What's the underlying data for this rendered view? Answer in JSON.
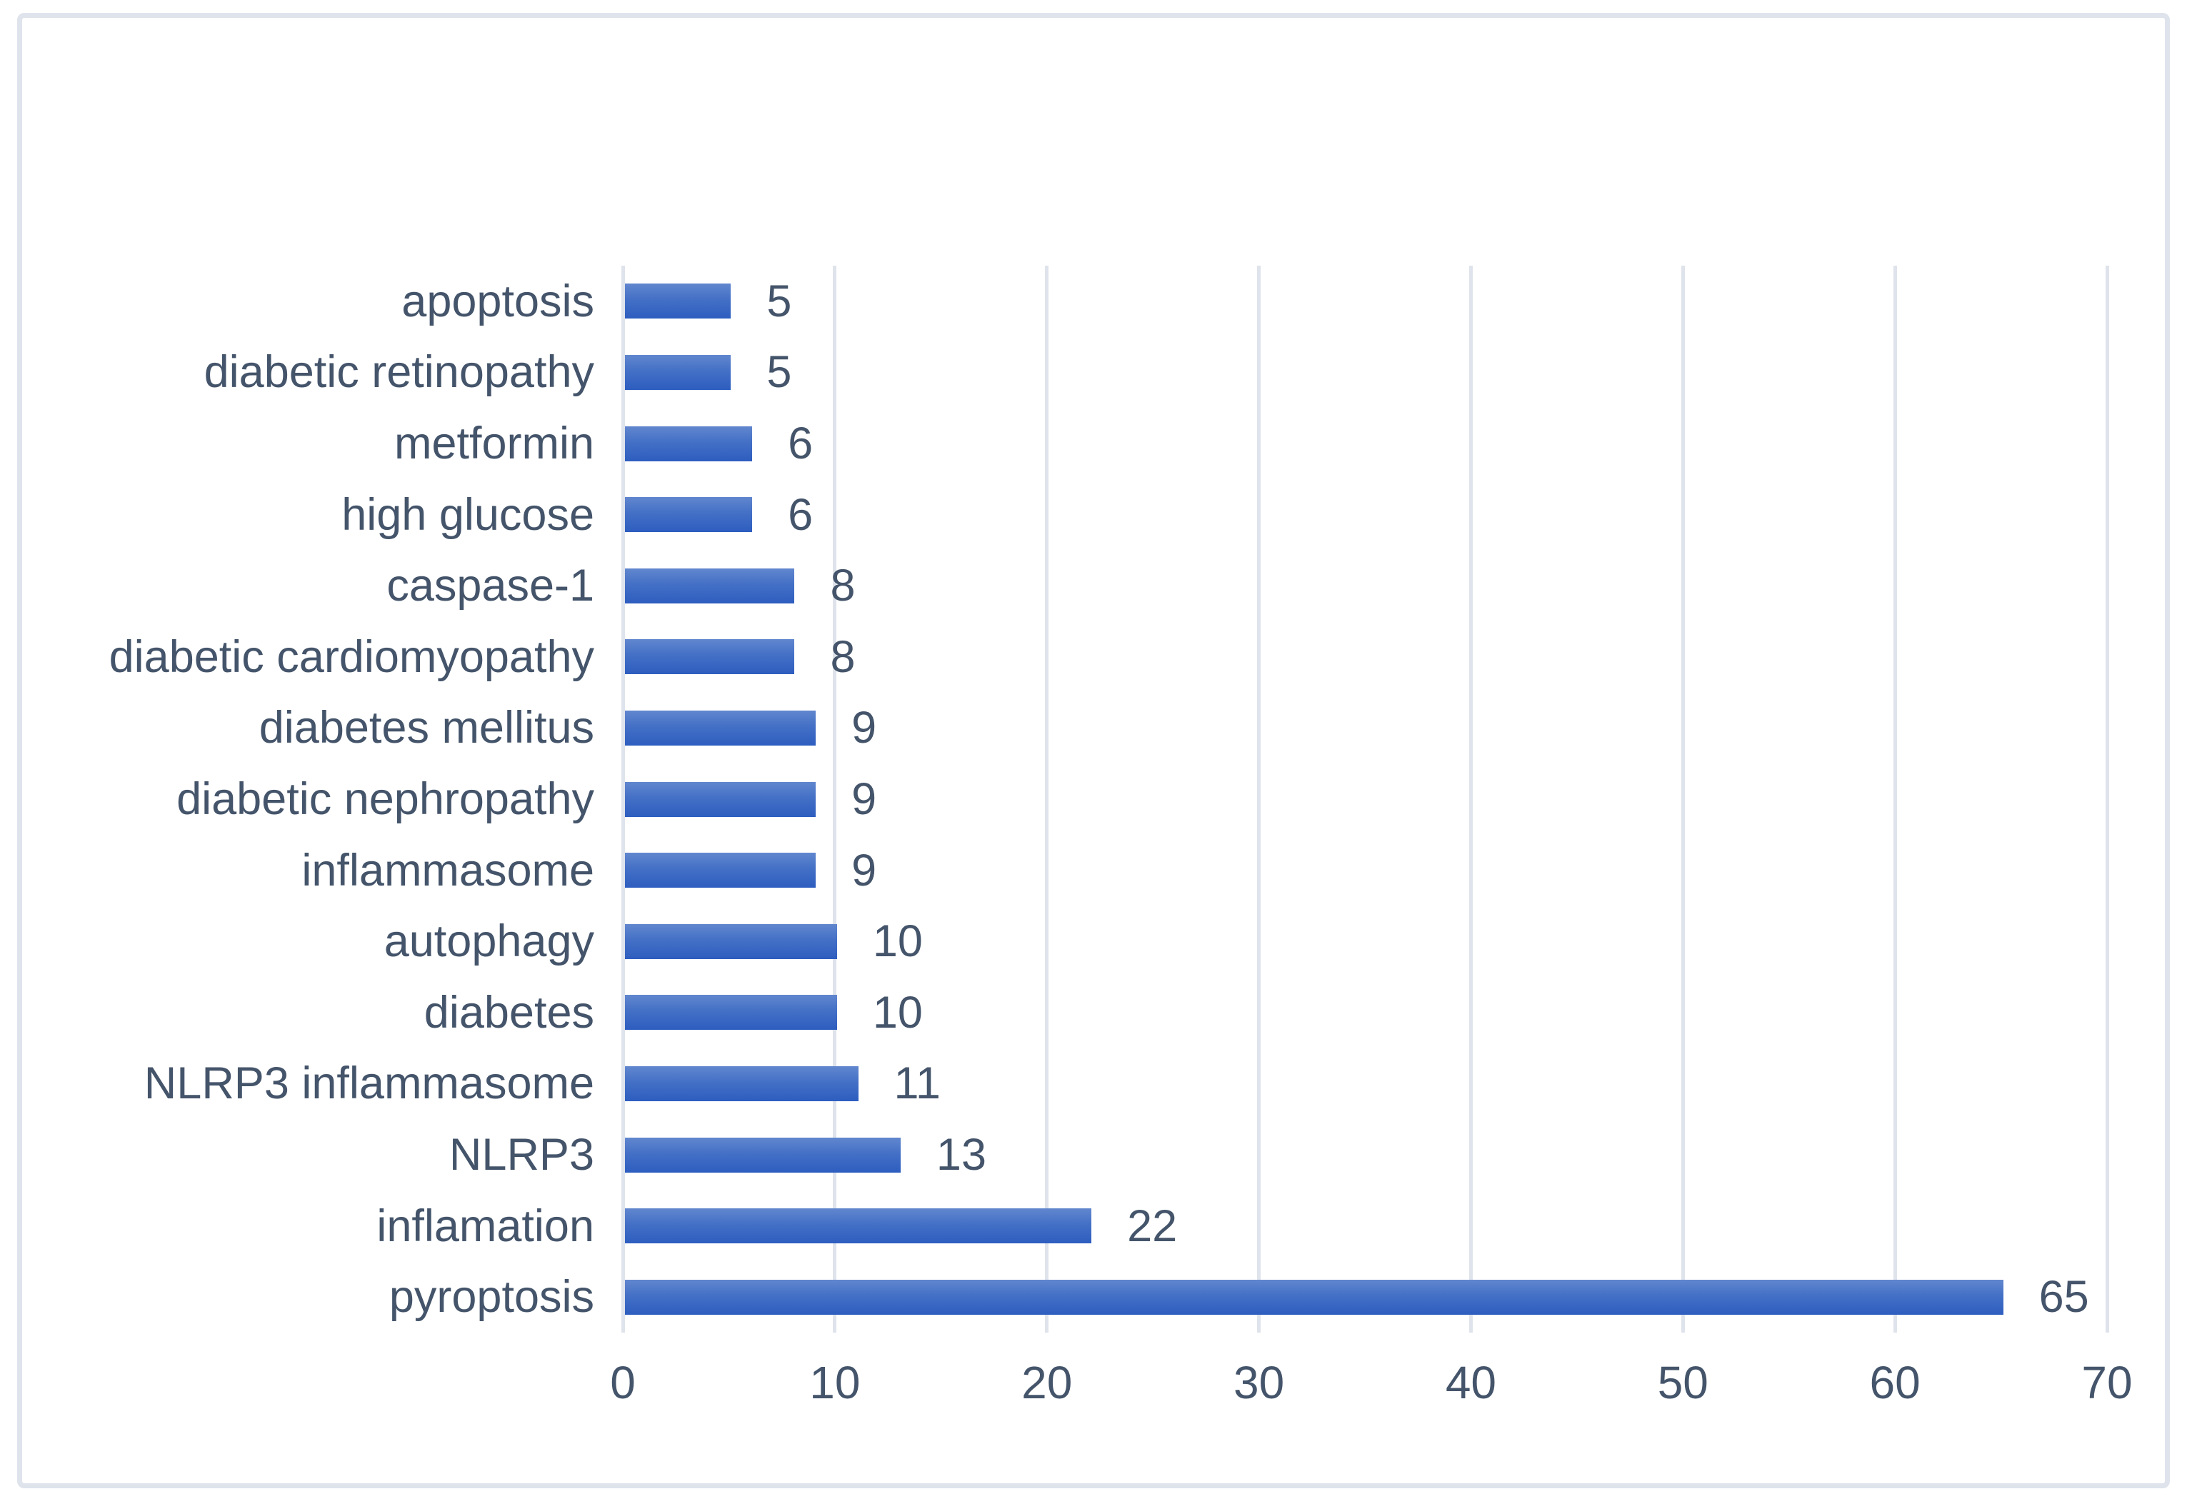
{
  "chart_data": {
    "type": "bar",
    "orientation": "horizontal",
    "title": "",
    "xlabel": "",
    "ylabel": "",
    "categories": [
      "apoptosis",
      "diabetic retinopathy",
      "metformin",
      "high glucose",
      "caspase-1",
      "diabetic cardiomyopathy",
      "diabetes mellitus",
      "diabetic nephropathy",
      "inflammasome",
      "autophagy",
      "diabetes",
      "NLRP3 inflammasome",
      "NLRP3",
      "inflamation",
      "pyroptosis"
    ],
    "values": [
      5,
      5,
      6,
      6,
      8,
      8,
      9,
      9,
      9,
      10,
      10,
      11,
      13,
      22,
      65
    ],
    "data_labels": [
      "5",
      "5",
      "6",
      "6",
      "8",
      "8",
      "9",
      "9",
      "9",
      "10",
      "10",
      "11",
      "13",
      "22",
      "65"
    ],
    "xlim": [
      0,
      70
    ],
    "x_ticks": [
      "0",
      "10",
      "20",
      "30",
      "40",
      "50",
      "60",
      "70"
    ],
    "grid": true,
    "legend": "none",
    "colors": {
      "bar_gradient_top": "#6187ce",
      "bar_gradient_bottom": "#2d5dbf",
      "text": "#44546a",
      "gridline": "#dfe3eb",
      "frame_border": "#dee3ec",
      "background": "#ffffff"
    }
  }
}
